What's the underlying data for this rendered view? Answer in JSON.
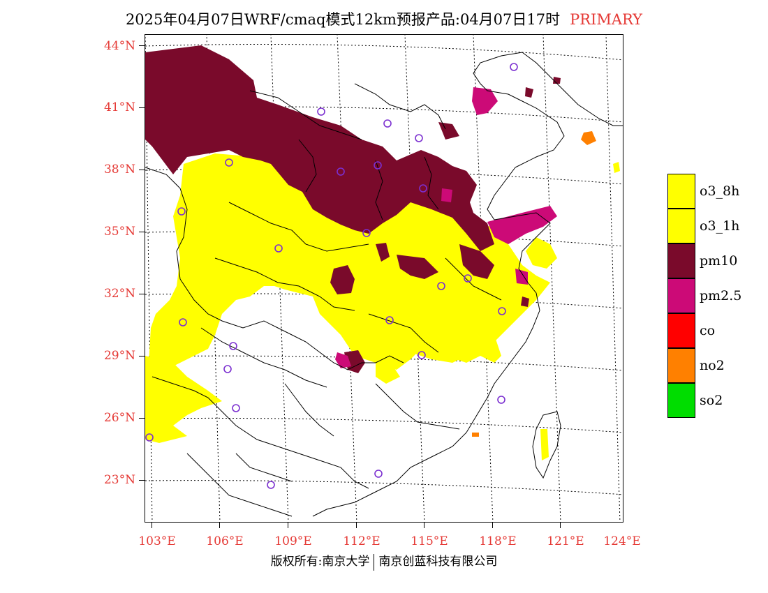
{
  "title": {
    "main": "2025年04月07日WRF/cmaq模式12km预报产品:04月07日17时",
    "tag": "PRIMARY"
  },
  "axes": {
    "lat_labels": [
      "44°N",
      "41°N",
      "38°N",
      "35°N",
      "32°N",
      "29°N",
      "26°N",
      "23°N"
    ],
    "lon_labels": [
      "103°E",
      "106°E",
      "109°E",
      "112°E",
      "115°E",
      "118°E",
      "121°E",
      "124°E"
    ]
  },
  "legend": [
    {
      "label": "o3_8h",
      "color": "#ffff00"
    },
    {
      "label": "o3_1h",
      "color": "#ffff00"
    },
    {
      "label": "pm10",
      "color": "#7a0a2b"
    },
    {
      "label": "pm2.5",
      "color": "#cc0a77"
    },
    {
      "label": "co",
      "color": "#ff0000"
    },
    {
      "label": "no2",
      "color": "#ff8000"
    },
    {
      "label": "so2",
      "color": "#00dd00"
    }
  ],
  "footer": {
    "left": "版权所有:南京大学",
    "right": "南京创蓝科技有限公司"
  },
  "colors": {
    "label_red": "#e53935",
    "station_circle": "#7b2fd0"
  }
}
